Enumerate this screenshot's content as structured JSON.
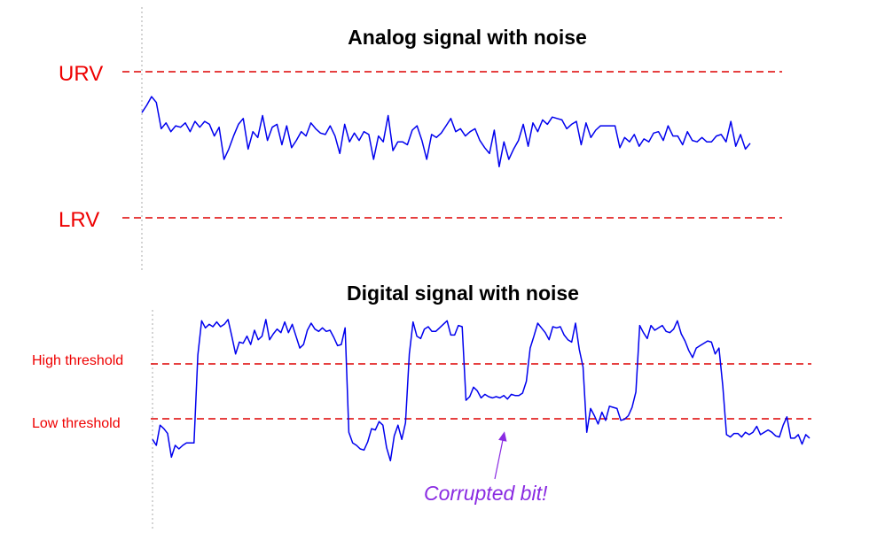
{
  "analog": {
    "title": "Analog signal with noise",
    "upper_label": "URV",
    "lower_label": "LRV",
    "signal": [
      0.72,
      0.77,
      0.83,
      0.79,
      0.61,
      0.65,
      0.59,
      0.63,
      0.62,
      0.65,
      0.59,
      0.66,
      0.62,
      0.66,
      0.64,
      0.56,
      0.62,
      0.4,
      0.47,
      0.56,
      0.64,
      0.68,
      0.47,
      0.59,
      0.55,
      0.7,
      0.53,
      0.62,
      0.64,
      0.5,
      0.63,
      0.48,
      0.53,
      0.59,
      0.56,
      0.65,
      0.61,
      0.58,
      0.57,
      0.63,
      0.56,
      0.44,
      0.64,
      0.52,
      0.58,
      0.53,
      0.59,
      0.57,
      0.4,
      0.56,
      0.52,
      0.7,
      0.46,
      0.52,
      0.52,
      0.5,
      0.6,
      0.63,
      0.53,
      0.4,
      0.57,
      0.55,
      0.58,
      0.63,
      0.68,
      0.59,
      0.61,
      0.56,
      0.59,
      0.61,
      0.53,
      0.48,
      0.44,
      0.6,
      0.35,
      0.52,
      0.4,
      0.47,
      0.53,
      0.64,
      0.49,
      0.65,
      0.59,
      0.67,
      0.64,
      0.69,
      0.68,
      0.67,
      0.61,
      0.64,
      0.66,
      0.5,
      0.65,
      0.55,
      0.6,
      0.63,
      0.63,
      0.63,
      0.63,
      0.48,
      0.55,
      0.52,
      0.57,
      0.49,
      0.54,
      0.52,
      0.58,
      0.59,
      0.53,
      0.63,
      0.56,
      0.56,
      0.5,
      0.59,
      0.53,
      0.52,
      0.55,
      0.52,
      0.52,
      0.56,
      0.57,
      0.52,
      0.66,
      0.49,
      0.57,
      0.47,
      0.51
    ]
  },
  "digital": {
    "title": "Digital signal with noise",
    "high_label": "High threshold",
    "low_label": "Low threshold",
    "annotation": "Corrupted bit!",
    "signal": [
      0.08,
      0.03,
      0.2,
      0.17,
      0.13,
      -0.07,
      0.03,
      0.0,
      0.03,
      0.05,
      0.05,
      0.05,
      0.79,
      1.08,
      1.02,
      1.05,
      1.03,
      1.07,
      1.03,
      1.05,
      1.09,
      0.95,
      0.8,
      0.9,
      0.89,
      0.95,
      0.88,
      1.0,
      0.92,
      0.95,
      1.09,
      0.92,
      0.97,
      1.01,
      0.98,
      1.07,
      0.98,
      1.05,
      0.95,
      0.85,
      0.88,
      1.0,
      1.06,
      1.01,
      0.99,
      1.02,
      0.99,
      1.0,
      0.94,
      0.87,
      0.88,
      1.02,
      0.14,
      0.05,
      0.03,
      0.0,
      -0.01,
      0.06,
      0.17,
      0.16,
      0.23,
      0.2,
      0.01,
      -0.1,
      0.11,
      0.2,
      0.08,
      0.22,
      0.8,
      1.07,
      0.95,
      0.93,
      1.01,
      1.03,
      0.99,
      0.99,
      1.02,
      1.05,
      1.08,
      0.96,
      0.96,
      1.04,
      1.03,
      0.41,
      0.44,
      0.52,
      0.49,
      0.43,
      0.46,
      0.44,
      0.43,
      0.44,
      0.43,
      0.45,
      0.42,
      0.46,
      0.45,
      0.45,
      0.47,
      0.57,
      0.85,
      0.95,
      1.06,
      1.02,
      0.98,
      0.92,
      1.03,
      1.02,
      1.03,
      0.96,
      0.92,
      0.9,
      1.06,
      0.84,
      0.69,
      0.14,
      0.34,
      0.28,
      0.21,
      0.31,
      0.24,
      0.36,
      0.35,
      0.34,
      0.24,
      0.25,
      0.28,
      0.35,
      0.48,
      1.04,
      0.98,
      0.93,
      1.04,
      1.0,
      1.02,
      1.04,
      0.99,
      0.98,
      1.01,
      1.08,
      0.97,
      0.91,
      0.83,
      0.77,
      0.85,
      0.87,
      0.89,
      0.91,
      0.9,
      0.8,
      0.85,
      0.53,
      0.12,
      0.1,
      0.13,
      0.13,
      0.1,
      0.14,
      0.12,
      0.14,
      0.19,
      0.12,
      0.14,
      0.16,
      0.14,
      0.11,
      0.1,
      0.2,
      0.27,
      0.09,
      0.09,
      0.12,
      0.04,
      0.12,
      0.09
    ]
  },
  "colors": {
    "signal": "#0000ee",
    "threshold": "#dd0000",
    "annotation": "#8a2be2"
  }
}
